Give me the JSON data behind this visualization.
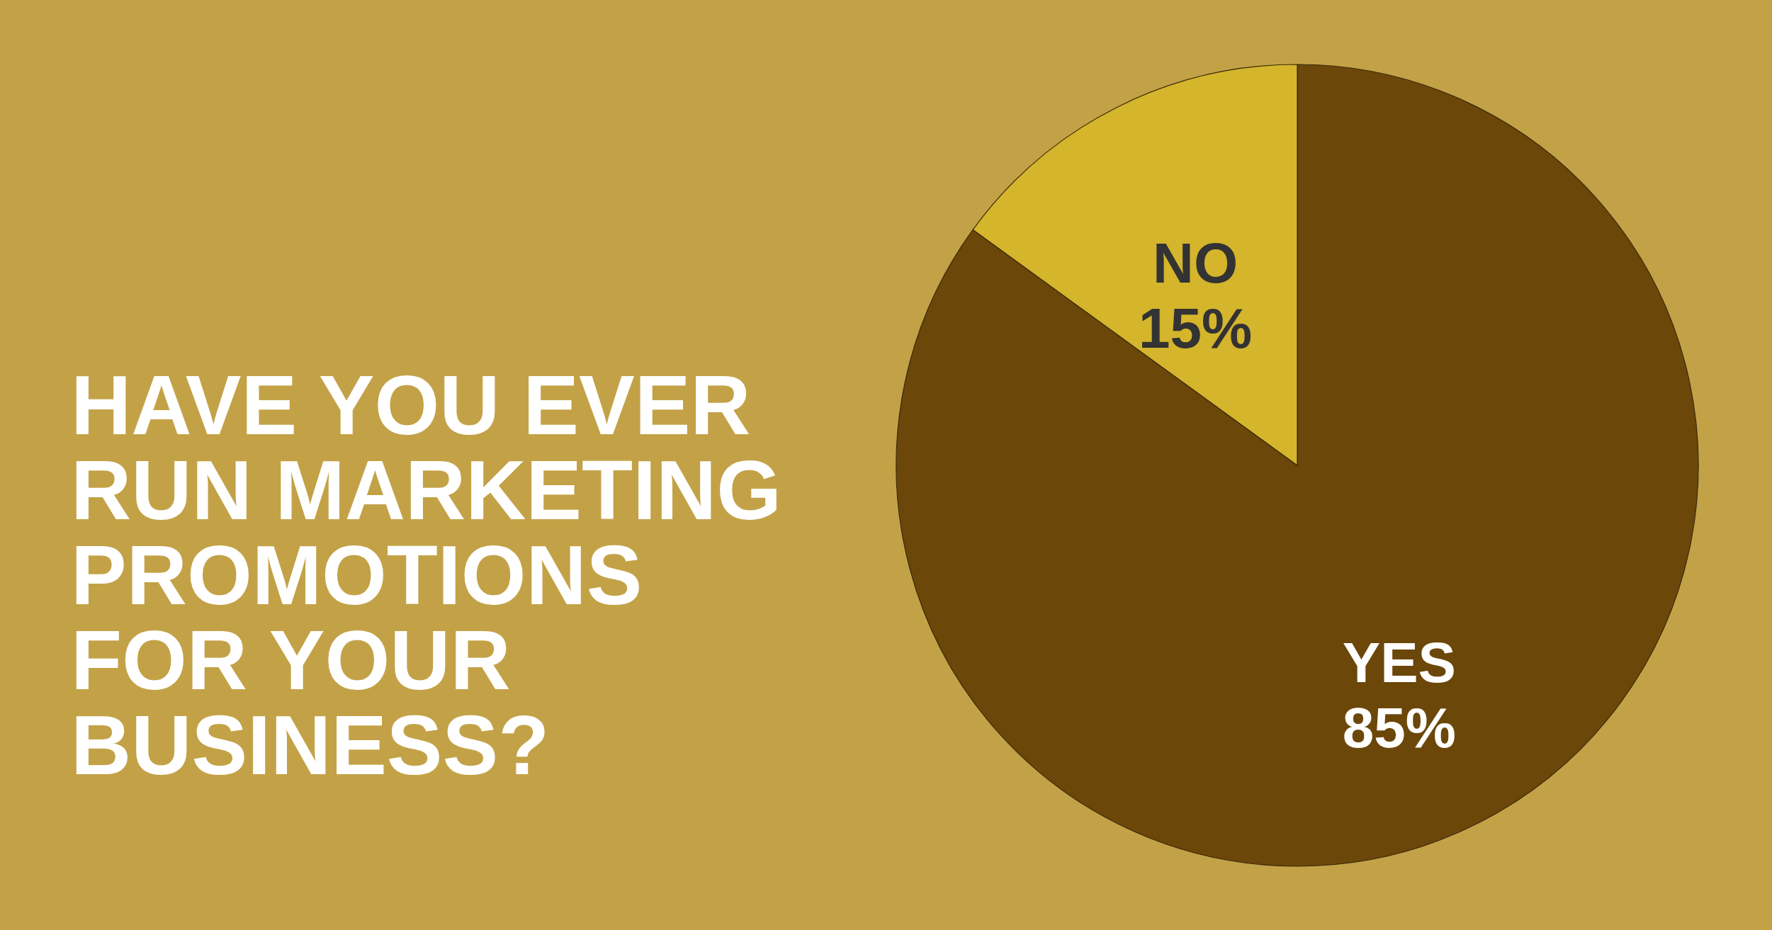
{
  "chart_data": {
    "type": "pie",
    "title": "HAVE YOU EVER RUN MARKETING PROMOTIONS FOR YOUR BUSINESS?",
    "categories": [
      "YES",
      "NO"
    ],
    "values": [
      85,
      15
    ],
    "colors": [
      "#6b4709",
      "#d4b52b"
    ],
    "value_labels": [
      "85%",
      "15%"
    ]
  }
}
